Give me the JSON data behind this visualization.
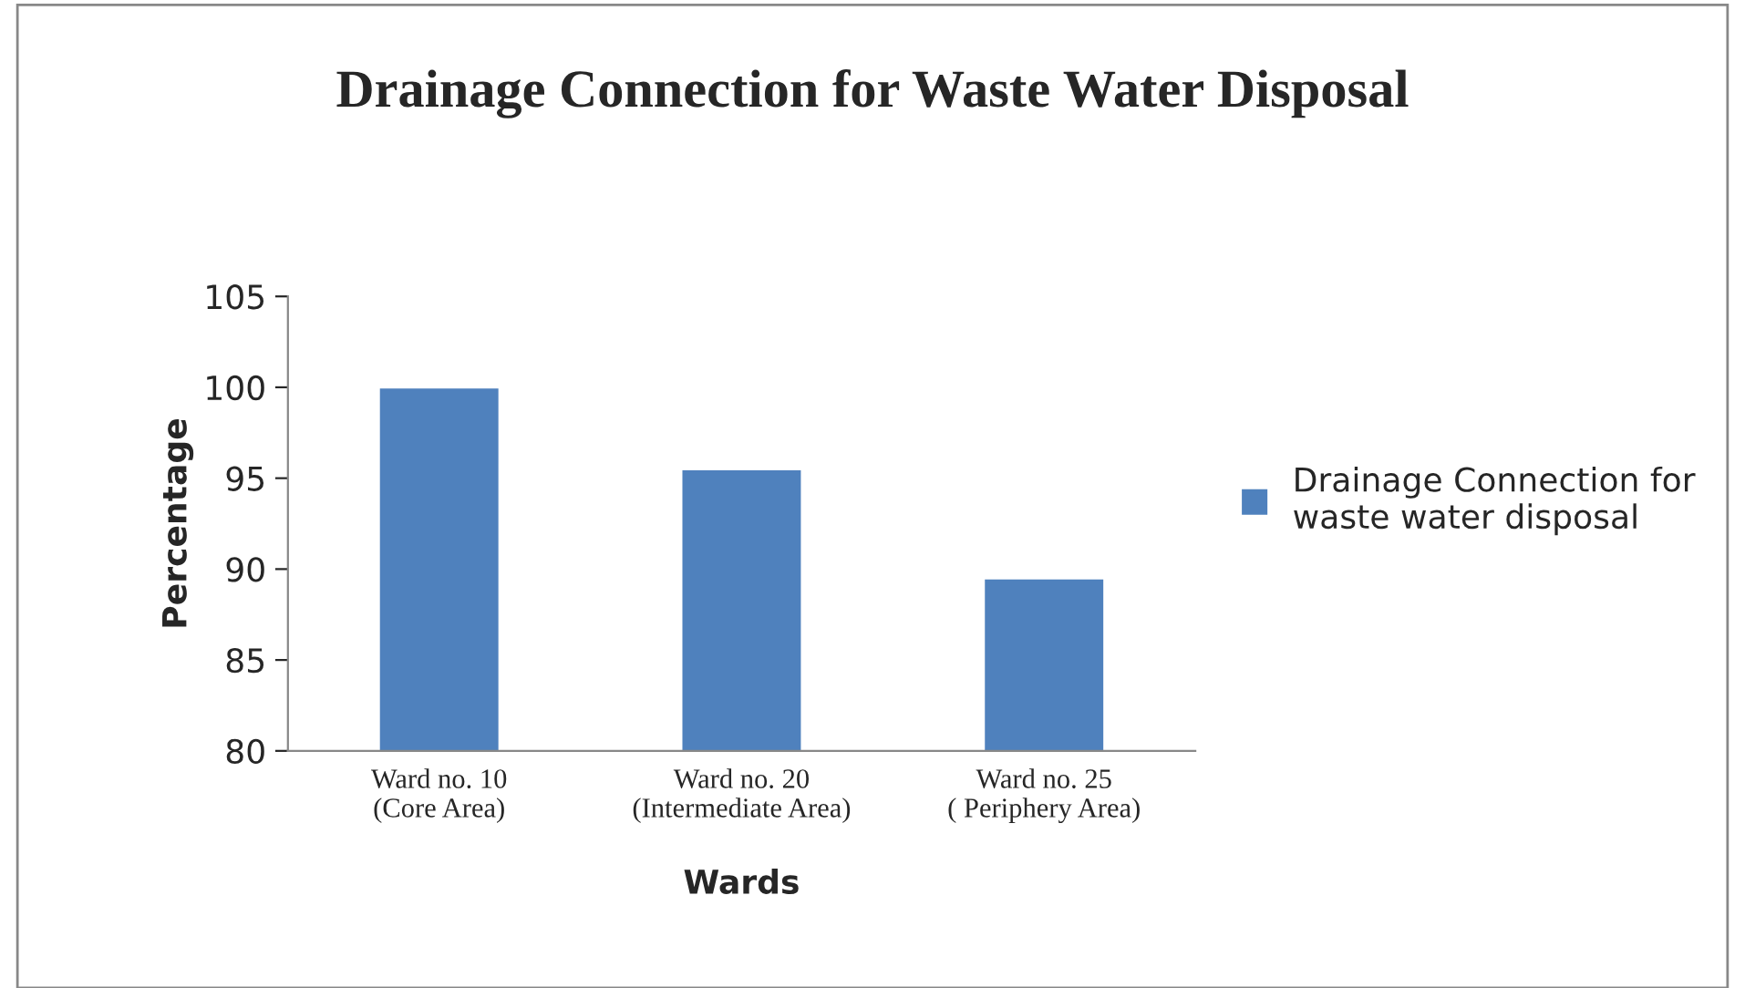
{
  "chart_data": {
    "type": "bar",
    "title": "Drainage Connection for Waste Water Disposal",
    "categories": [
      "Ward no. 10\n(Core Area)",
      "Ward no. 20\n(Intermediate Area)",
      "Ward no. 25\n( Periphery Area)"
    ],
    "series": [
      {
        "name": "Drainage Connection for\nwaste water disposal",
        "color": "#4f81bd",
        "values": [
          100,
          95.5,
          89.5
        ]
      }
    ],
    "xlabel": "Wards",
    "ylabel": "Percentage",
    "ylim": [
      80,
      105
    ],
    "yticks": [
      80,
      85,
      90,
      95,
      100,
      105
    ],
    "legend": "right",
    "grid": false
  }
}
